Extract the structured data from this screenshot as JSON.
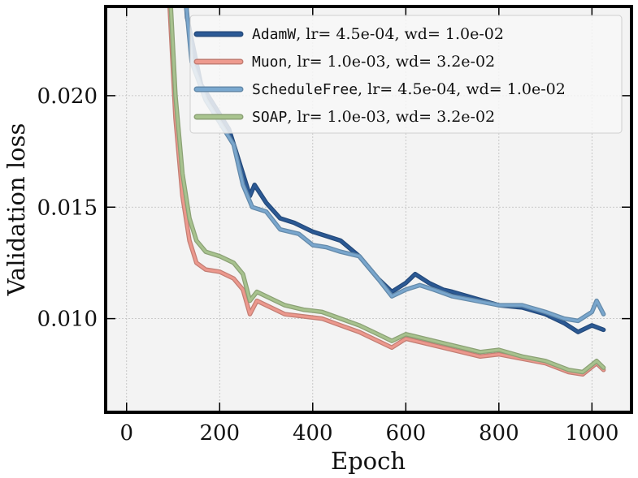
{
  "chart_data": {
    "type": "line",
    "xlabel": "Epoch",
    "ylabel": "Validation loss",
    "xlim": [
      -45,
      1085
    ],
    "ylim": [
      0.0058,
      0.024
    ],
    "xticks": [
      0,
      200,
      400,
      600,
      800,
      1000
    ],
    "xtick_labels": [
      "0",
      "200",
      "400",
      "600",
      "800",
      "1000"
    ],
    "yticks": [
      0.01,
      0.015,
      0.02
    ],
    "ytick_labels": [
      "0.010",
      "0.015",
      "0.020"
    ],
    "grid": true,
    "legend_position": "top-right",
    "series": [
      {
        "name": "AdamW",
        "legend_rest": ", lr= 4.5e-04, wd= 1.0e-02",
        "color": "#2c5a96",
        "x": [
          100,
          130,
          160,
          190,
          220,
          250,
          265,
          275,
          300,
          330,
          360,
          400,
          430,
          460,
          500,
          540,
          570,
          600,
          620,
          650,
          680,
          700,
          750,
          800,
          850,
          900,
          940,
          970,
          1000,
          1025
        ],
        "y": [
          0.032,
          0.0235,
          0.0205,
          0.0195,
          0.0185,
          0.0165,
          0.0155,
          0.016,
          0.0152,
          0.0145,
          0.0143,
          0.0139,
          0.0137,
          0.0135,
          0.0128,
          0.0118,
          0.0112,
          0.0116,
          0.012,
          0.0116,
          0.0113,
          0.0112,
          0.0109,
          0.0106,
          0.0105,
          0.0102,
          0.0098,
          0.0094,
          0.0097,
          0.0095
        ]
      },
      {
        "name": "Muon",
        "legend_rest": ", lr= 1.0e-03, wd= 3.2e-02",
        "color": "#ee9a8e",
        "x": [
          90,
          105,
          120,
          135,
          150,
          170,
          200,
          230,
          250,
          265,
          280,
          300,
          340,
          380,
          420,
          460,
          500,
          540,
          570,
          600,
          640,
          700,
          760,
          800,
          850,
          900,
          950,
          980,
          1010,
          1025
        ],
        "y": [
          0.025,
          0.019,
          0.0155,
          0.0135,
          0.0125,
          0.0122,
          0.0121,
          0.0118,
          0.0113,
          0.0102,
          0.0108,
          0.0106,
          0.0102,
          0.0101,
          0.01,
          0.0097,
          0.0094,
          0.009,
          0.0087,
          0.0091,
          0.0089,
          0.0086,
          0.0083,
          0.0084,
          0.0082,
          0.008,
          0.0076,
          0.0075,
          0.008,
          0.0077
        ]
      },
      {
        "name": "ScheduleFree",
        "legend_rest": ", lr= 4.5e-04, wd= 1.0e-02",
        "color": "#7aa8cf",
        "x": [
          110,
          140,
          170,
          200,
          230,
          250,
          270,
          300,
          330,
          370,
          400,
          430,
          460,
          500,
          540,
          570,
          600,
          630,
          660,
          700,
          750,
          800,
          850,
          900,
          940,
          970,
          1000,
          1010,
          1025
        ],
        "y": [
          0.028,
          0.0215,
          0.0198,
          0.0188,
          0.0178,
          0.016,
          0.015,
          0.0148,
          0.014,
          0.0138,
          0.0133,
          0.0132,
          0.013,
          0.0128,
          0.0118,
          0.011,
          0.0113,
          0.0115,
          0.0113,
          0.011,
          0.0108,
          0.0106,
          0.0106,
          0.0103,
          0.01,
          0.0099,
          0.0103,
          0.0108,
          0.0102
        ]
      },
      {
        "name": "SOAP",
        "legend_rest": ", lr= 1.0e-03, wd= 3.2e-02",
        "color": "#a9c48f",
        "x": [
          90,
          105,
          120,
          135,
          150,
          170,
          200,
          230,
          250,
          265,
          280,
          300,
          340,
          380,
          420,
          460,
          500,
          540,
          570,
          600,
          640,
          700,
          760,
          800,
          850,
          900,
          950,
          980,
          1010,
          1025
        ],
        "y": [
          0.026,
          0.02,
          0.0165,
          0.0145,
          0.0135,
          0.013,
          0.0128,
          0.0125,
          0.012,
          0.0108,
          0.0112,
          0.011,
          0.0106,
          0.0104,
          0.0103,
          0.01,
          0.0097,
          0.0093,
          0.009,
          0.0093,
          0.0091,
          0.0088,
          0.0085,
          0.0086,
          0.0083,
          0.0081,
          0.0077,
          0.0076,
          0.0081,
          0.0078
        ]
      }
    ]
  }
}
